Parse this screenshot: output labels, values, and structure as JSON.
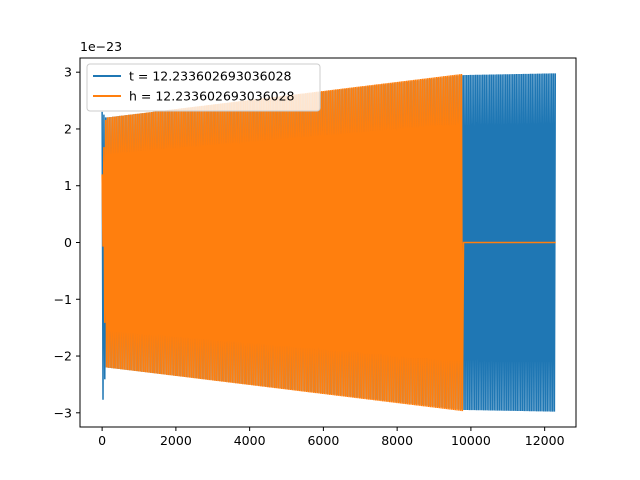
{
  "chart_data": {
    "type": "line",
    "title": "",
    "xlabel": "",
    "ylabel": "",
    "offset_label": "1e−23",
    "xlim": [
      -600,
      12850
    ],
    "ylim": [
      -3.25,
      3.25
    ],
    "x_ticks": [
      0,
      2000,
      4000,
      6000,
      8000,
      10000,
      12000
    ],
    "x_tick_labels": [
      "0",
      "2000",
      "4000",
      "6000",
      "8000",
      "10000",
      "12000"
    ],
    "y_ticks": [
      -3,
      -2,
      -1,
      0,
      1,
      2,
      3
    ],
    "y_tick_labels": [
      "−3",
      "−2",
      "−1",
      "0",
      "1",
      "2",
      "3"
    ],
    "grid": false,
    "legend_position": "top-left",
    "series": [
      {
        "name": "t = 12.233602693036028",
        "color": "#1f77b4",
        "description_points": [
          {
            "x": 0,
            "y_max": 2.3,
            "y_min": -2.95
          },
          {
            "x": 100,
            "y_max": 2.2,
            "y_min": -2.2
          },
          {
            "x": 9800,
            "y_max": 2.95,
            "y_min": -2.95
          },
          {
            "x": 12300,
            "y_max": 2.98,
            "y_min": -2.98
          }
        ]
      },
      {
        "name": "h = 12.233602693036028",
        "color": "#ff7f0e",
        "description_points": [
          {
            "x": 0,
            "y_max": 1.2,
            "y_min": 0.6
          },
          {
            "x": 100,
            "y_max": 2.2,
            "y_min": -2.2
          },
          {
            "x": 9770,
            "y_max": 2.97,
            "y_min": -2.97
          },
          {
            "x": 9800,
            "y_max": 0,
            "y_min": 0
          },
          {
            "x": 12300,
            "y_max": 0,
            "y_min": 0
          }
        ]
      }
    ]
  }
}
